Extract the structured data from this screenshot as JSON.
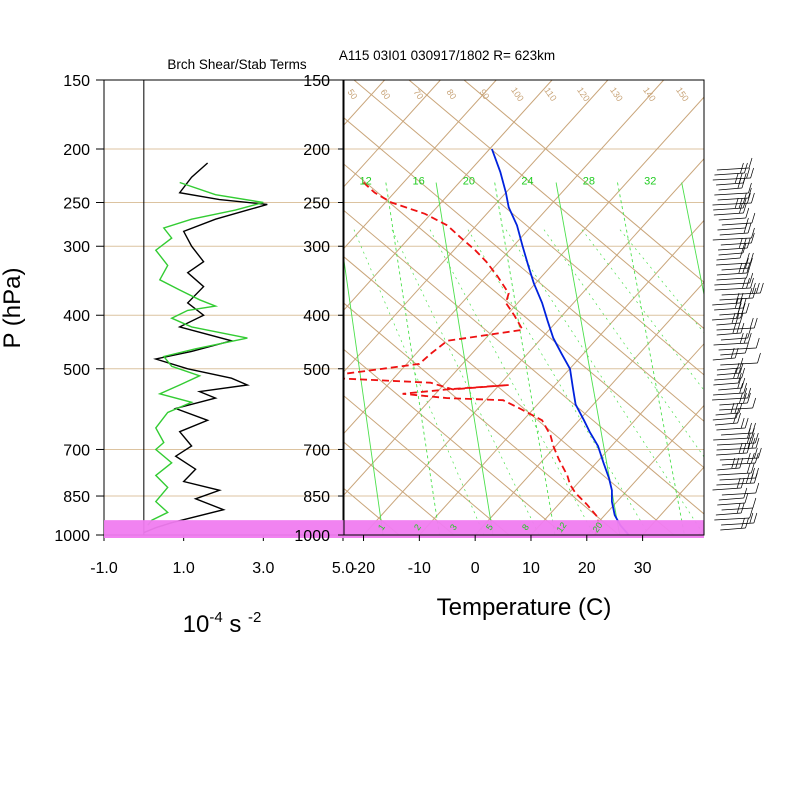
{
  "colors": {
    "frame": "#000000",
    "isobar": "#dcc3a0",
    "skew_iso": "#c9a57a",
    "mixing": "#4ce04c",
    "temperature": "#ee1111",
    "dewpoint": "#0022dd",
    "surface_band": "#f07cf0",
    "shear_black": "#000000",
    "shear_green": "#33cc33"
  },
  "chart_data": [
    {
      "type": "line",
      "title": "Brch Shear/Stab Terms",
      "ylabel": "P (hPa)",
      "xlabel": "10⁻⁴ s ⁻²",
      "xlabel_parts": {
        "base": "10",
        "exp1": "-4",
        "mid": " s ",
        "exp2": "-2"
      },
      "xlim": [
        -1.0,
        5.0
      ],
      "x_ticks": [
        "-1.0",
        "1.0",
        "3.0",
        "5.0"
      ],
      "p_ticks": [
        150,
        200,
        250,
        300,
        400,
        500,
        700,
        850,
        1000
      ],
      "p_range": [
        150,
        1000
      ],
      "series": [
        {
          "color": "shear_black",
          "points": [
            [
              1.6,
              212
            ],
            [
              1.2,
              225
            ],
            [
              0.9,
              240
            ],
            [
              1.9,
              247
            ],
            [
              3.1,
              252
            ],
            [
              2.6,
              258
            ],
            [
              1.8,
              268
            ],
            [
              1.0,
              282
            ],
            [
              1.2,
              300
            ],
            [
              1.5,
              320
            ],
            [
              1.1,
              335
            ],
            [
              1.5,
              355
            ],
            [
              1.1,
              380
            ],
            [
              1.5,
              400
            ],
            [
              0.9,
              420
            ],
            [
              2.2,
              445
            ],
            [
              1.2,
              465
            ],
            [
              0.3,
              480
            ],
            [
              1.1,
              500
            ],
            [
              2.2,
              520
            ],
            [
              2.6,
              535
            ],
            [
              1.4,
              550
            ],
            [
              1.8,
              565
            ],
            [
              0.8,
              590
            ],
            [
              1.6,
              620
            ],
            [
              0.9,
              650
            ],
            [
              1.2,
              690
            ],
            [
              0.8,
              720
            ],
            [
              1.3,
              760
            ],
            [
              1.0,
              800
            ],
            [
              1.9,
              830
            ],
            [
              1.3,
              860
            ],
            [
              2.0,
              900
            ],
            [
              0.7,
              950
            ],
            [
              0.3,
              970
            ],
            [
              0.0,
              990
            ]
          ]
        },
        {
          "color": "shear_green",
          "points": [
            [
              0.9,
              230
            ],
            [
              1.8,
              242
            ],
            [
              3.0,
              250
            ],
            [
              2.3,
              258
            ],
            [
              1.2,
              268
            ],
            [
              0.5,
              278
            ],
            [
              0.7,
              290
            ],
            [
              0.3,
              305
            ],
            [
              0.6,
              325
            ],
            [
              0.4,
              345
            ],
            [
              0.9,
              360
            ],
            [
              1.4,
              375
            ],
            [
              1.8,
              385
            ],
            [
              1.1,
              392
            ],
            [
              0.7,
              405
            ],
            [
              1.2,
              420
            ],
            [
              2.6,
              440
            ],
            [
              1.3,
              460
            ],
            [
              0.5,
              475
            ],
            [
              0.7,
              495
            ],
            [
              1.4,
              515
            ],
            [
              0.9,
              535
            ],
            [
              0.4,
              555
            ],
            [
              1.2,
              575
            ],
            [
              0.6,
              600
            ],
            [
              0.3,
              640
            ],
            [
              0.5,
              680
            ],
            [
              0.3,
              700
            ],
            [
              0.7,
              740
            ],
            [
              0.3,
              780
            ],
            [
              0.6,
              820
            ],
            [
              0.3,
              870
            ],
            [
              0.6,
              910
            ],
            [
              0.2,
              940
            ],
            [
              0.1,
              960
            ]
          ]
        }
      ]
    },
    {
      "type": "line",
      "title": "A115 03I01 030917/1802 R= 623km",
      "xlabel": "Temperature (C)",
      "ylabel": "P (hPa)",
      "xlim": [
        -23.5,
        41
      ],
      "p_range": [
        150,
        1000
      ],
      "x_ticks": [
        "-20",
        "-10",
        "0",
        "10",
        "20",
        "30"
      ],
      "p_ticks": [
        150,
        200,
        250,
        300,
        400,
        500,
        700,
        850,
        1000
      ],
      "surface_band_hPa": [
        940,
        1000
      ],
      "mixing_ratio_labels": [
        {
          "text": "12",
          "t": -22.5
        },
        {
          "text": "16",
          "t": -13.0
        },
        {
          "text": "20",
          "t": -4.0
        },
        {
          "text": "24",
          "t": 6.5
        },
        {
          "text": "28",
          "t": 17.5
        },
        {
          "text": "32",
          "t": 28.5
        }
      ],
      "mixing_ratio_bottom_labels": [
        "1",
        "2",
        "3",
        "5",
        "8",
        "12",
        "20"
      ],
      "dry_adiabat_labels": [
        "50",
        "60",
        "70",
        "80",
        "90",
        "100",
        "110",
        "120",
        "130",
        "140",
        "150"
      ],
      "series": [
        {
          "name": "",
          "color": "dewpoint",
          "style": "solid",
          "points": [
            [
              3.0,
              200
            ],
            [
              4.5,
              220
            ],
            [
              5.5,
              240
            ],
            [
              6.0,
              255
            ],
            [
              7.5,
              275
            ],
            [
              8.5,
              300
            ],
            [
              9.5,
              325
            ],
            [
              10.5,
              350
            ],
            [
              12.0,
              380
            ],
            [
              13.0,
              410
            ],
            [
              14.0,
              440
            ],
            [
              15.5,
              470
            ],
            [
              17.0,
              500
            ],
            [
              17.5,
              540
            ],
            [
              18.0,
              580
            ],
            [
              19.5,
              620
            ],
            [
              20.5,
              650
            ],
            [
              22.0,
              690
            ],
            [
              23.0,
              740
            ],
            [
              24.0,
              790
            ],
            [
              24.5,
              830
            ],
            [
              24.5,
              870
            ],
            [
              25.0,
              920
            ],
            [
              26.0,
              960
            ],
            [
              27.5,
              1000
            ]
          ]
        },
        {
          "name": "",
          "color": "temperature",
          "style": "dashed",
          "points": [
            [
              -20.0,
              230
            ],
            [
              -18.0,
              240
            ],
            [
              -15.0,
              250
            ],
            [
              -9.0,
              262
            ],
            [
              -5.0,
              275
            ],
            [
              -2.5,
              290
            ],
            [
              0.0,
              305
            ],
            [
              2.0,
              320
            ],
            [
              4.0,
              340
            ],
            [
              6.0,
              365
            ],
            [
              5.5,
              380
            ],
            [
              7.0,
              400
            ],
            [
              8.5,
              425
            ],
            [
              -5.0,
              445
            ],
            [
              -8.0,
              470
            ],
            [
              -10.0,
              490
            ],
            [
              -23.0,
              510
            ],
            [
              -25.0,
              520
            ],
            [
              -8.0,
              530
            ],
            [
              -4.0,
              545
            ],
            [
              6.0,
              535
            ],
            [
              -5.0,
              545
            ],
            [
              -13.0,
              555
            ],
            [
              -5.0,
              565
            ],
            [
              5.0,
              570
            ],
            [
              8.0,
              590
            ],
            [
              12.0,
              620
            ],
            [
              13.5,
              660
            ],
            [
              14.0,
              690
            ],
            [
              15.0,
              730
            ],
            [
              16.5,
              780
            ],
            [
              17.0,
              810
            ],
            [
              18.0,
              840
            ],
            [
              20.0,
              880
            ],
            [
              22.0,
              930
            ],
            [
              22.0,
              970
            ],
            [
              21.5,
              1000
            ]
          ]
        }
      ],
      "wind_barbs_label": ""
    }
  ]
}
